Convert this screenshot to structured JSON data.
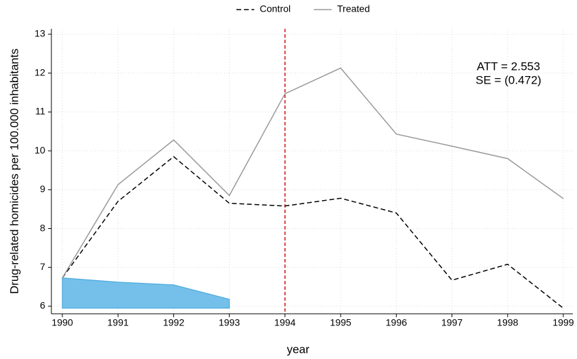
{
  "chart_data": {
    "type": "line",
    "x": [
      1990,
      1991,
      1992,
      1993,
      1994,
      1995,
      1996,
      1997,
      1998,
      1999
    ],
    "series": [
      {
        "name": "Control",
        "color": "#000000",
        "dash": true,
        "values": [
          6.73,
          8.7,
          9.85,
          8.65,
          8.58,
          8.78,
          8.4,
          6.67,
          7.08,
          5.95
        ]
      },
      {
        "name": "Treated",
        "color": "#999999",
        "dash": false,
        "values": [
          6.73,
          9.13,
          10.28,
          8.85,
          11.47,
          12.13,
          10.43,
          10.12,
          9.8,
          8.77
        ]
      }
    ],
    "area": {
      "x": [
        1990,
        1991,
        1992,
        1993
      ],
      "values": [
        6.73,
        6.62,
        6.55,
        6.18
      ],
      "base": 5.95,
      "color": "#74c0ea",
      "edge": "#4aa8dc"
    },
    "vline": {
      "x": 1994,
      "color": "#cc0000"
    },
    "annotations": [
      "ATT = 2.553",
      "SE = (0.472)"
    ],
    "xlabel": "year",
    "ylabel": "Drug-related homicides per 100.000 inhabitants",
    "xlim": [
      1990,
      1999
    ],
    "xticks": [
      1990,
      1991,
      1992,
      1993,
      1994,
      1995,
      1996,
      1997,
      1998,
      1999
    ],
    "ylim": [
      6,
      13
    ],
    "yticks": [
      6,
      7,
      8,
      9,
      10,
      11,
      12,
      13
    ],
    "grid": true,
    "legend": "top"
  }
}
